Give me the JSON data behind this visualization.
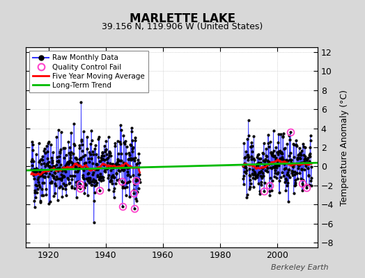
{
  "title": "MARLETTE LAKE",
  "subtitle": "39.156 N, 119.906 W (United States)",
  "ylabel": "Temperature Anomaly (°C)",
  "attribution": "Berkeley Earth",
  "xlim": [
    1912,
    2014
  ],
  "ylim": [
    -8.5,
    12.5
  ],
  "yticks": [
    -8,
    -6,
    -4,
    -2,
    0,
    2,
    4,
    6,
    8,
    10,
    12
  ],
  "xticks": [
    1920,
    1940,
    1960,
    1980,
    2000
  ],
  "bg_color": "#d8d8d8",
  "plot_bg_color": "#ffffff",
  "raw_line_color": "#3333ff",
  "raw_marker_color": "#000000",
  "qc_color": "#ff44cc",
  "moving_avg_color": "#ff0000",
  "trend_color": "#00bb00",
  "seed": 42,
  "period1_start": 1914,
  "period1_end": 1952,
  "period2_start": 1988,
  "period2_end": 2012,
  "trend_x": [
    1912,
    2014
  ],
  "trend_y": [
    -0.42,
    0.38
  ],
  "noise_scale1": 1.8,
  "noise_scale2": 1.5
}
